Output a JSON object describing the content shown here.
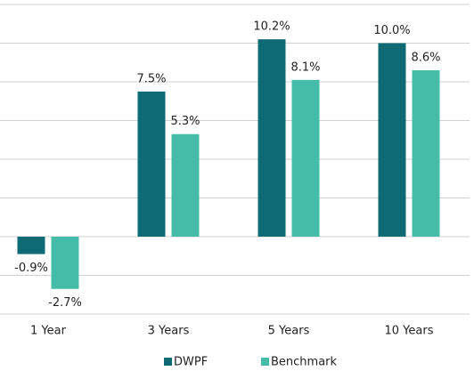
{
  "chart_data": {
    "type": "bar",
    "categories": [
      "1 Year",
      "3 Years",
      "5 Years",
      "10 Years"
    ],
    "series": [
      {
        "name": "DWPF",
        "color": "#0e6b75",
        "values": [
          -0.9,
          7.5,
          10.2,
          10.0
        ],
        "value_labels": [
          "-0.9%",
          "7.5%",
          "10.2%",
          "10.0%"
        ]
      },
      {
        "name": "Benchmark",
        "color": "#45bca8",
        "values": [
          -2.7,
          5.3,
          8.1,
          8.6
        ],
        "value_labels": [
          "-2.7%",
          "5.3%",
          "8.1%",
          "8.6%"
        ]
      }
    ],
    "ylim": [
      -4,
      12
    ],
    "yticks": [
      -4,
      -2,
      0,
      2,
      4,
      6,
      8,
      10,
      12
    ],
    "grid": true,
    "legend": "bottom"
  }
}
